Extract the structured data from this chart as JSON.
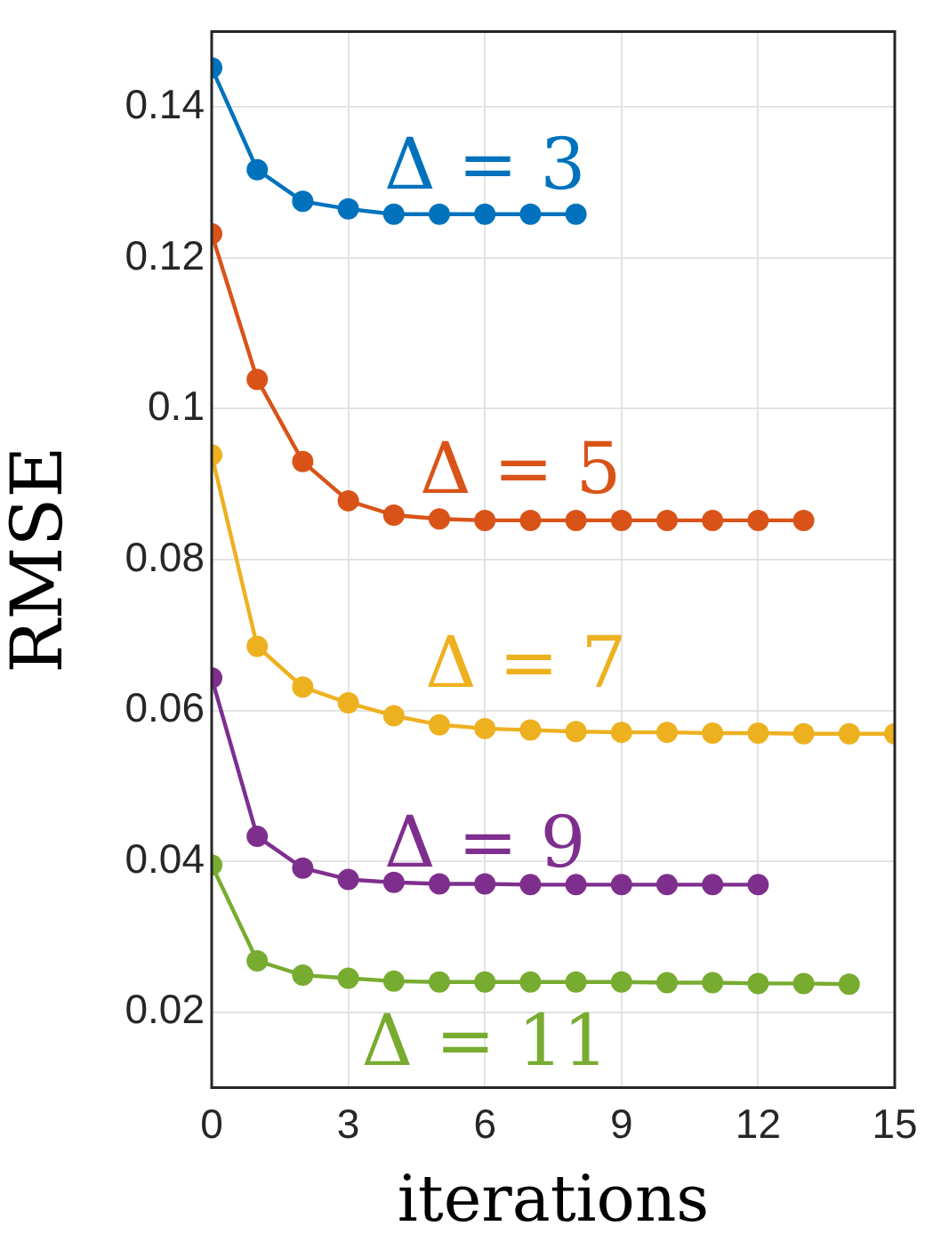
{
  "chart_data": {
    "type": "line",
    "xlabel": "iterations",
    "ylabel": "RMSE",
    "xlim": [
      0,
      15
    ],
    "xticks": [
      0,
      3,
      6,
      9,
      12,
      15
    ],
    "ylim": [
      0.01,
      0.15
    ],
    "yticks": [
      0.02,
      0.04,
      0.06,
      0.08,
      0.1,
      0.12,
      0.14
    ],
    "grid": true,
    "legend": false,
    "marker": "circle",
    "line_style": "solid",
    "series": [
      {
        "name": "Δ = 3",
        "color": "#0072bd",
        "x": [
          0,
          1,
          2,
          3,
          4,
          5,
          6,
          7,
          8
        ],
        "values": [
          0.1452,
          0.1317,
          0.1275,
          0.1265,
          0.1258,
          0.1258,
          0.1258,
          0.1258,
          0.1258
        ]
      },
      {
        "name": "Δ = 5",
        "color": "#d95319",
        "x": [
          0,
          1,
          2,
          3,
          4,
          5,
          6,
          7,
          8,
          9,
          10,
          11,
          12,
          13
        ],
        "values": [
          0.1232,
          0.1039,
          0.093,
          0.0878,
          0.0859,
          0.0854,
          0.0852,
          0.0852,
          0.0852,
          0.0852,
          0.0852,
          0.0852,
          0.0852,
          0.0852
        ]
      },
      {
        "name": "Δ = 7",
        "color": "#edb120",
        "x": [
          0,
          1,
          2,
          3,
          4,
          5,
          6,
          7,
          8,
          9,
          10,
          11,
          12,
          13,
          14,
          15
        ],
        "values": [
          0.0939,
          0.0685,
          0.0631,
          0.061,
          0.0593,
          0.0581,
          0.0576,
          0.0574,
          0.0572,
          0.0571,
          0.0571,
          0.057,
          0.057,
          0.0569,
          0.0569,
          0.0569
        ]
      },
      {
        "name": "Δ = 9",
        "color": "#7e2f8e",
        "x": [
          0,
          1,
          2,
          3,
          4,
          5,
          6,
          7,
          8,
          9,
          10,
          11,
          12
        ],
        "values": [
          0.0643,
          0.0433,
          0.0391,
          0.0376,
          0.0372,
          0.037,
          0.037,
          0.0369,
          0.0369,
          0.0369,
          0.0369,
          0.0369,
          0.0369
        ]
      },
      {
        "name": "Δ = 11",
        "color": "#77ac30",
        "x": [
          0,
          1,
          2,
          3,
          4,
          5,
          6,
          7,
          8,
          9,
          10,
          11,
          12,
          13,
          14
        ],
        "values": [
          0.0395,
          0.0268,
          0.0249,
          0.0245,
          0.0241,
          0.024,
          0.024,
          0.024,
          0.024,
          0.024,
          0.0239,
          0.0239,
          0.0238,
          0.0238,
          0.0237
        ]
      }
    ]
  }
}
